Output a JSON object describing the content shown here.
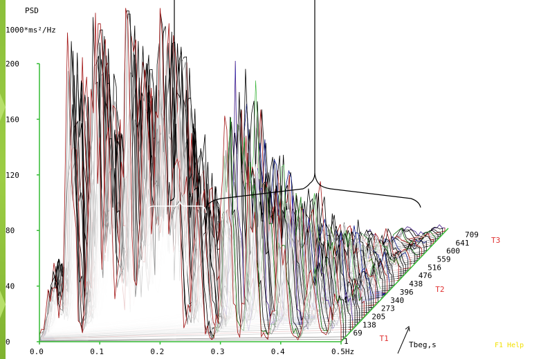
{
  "chart_data": {
    "type": "area",
    "ylabel_line1": "PSD",
    "ylabel_line2": "1000*ms²/Hz",
    "ytick_labels": [
      "0",
      "40",
      "80",
      "120",
      "160",
      "200"
    ],
    "y_ticks": [
      0,
      40,
      80,
      120,
      160,
      200
    ],
    "ylim": [
      0,
      240
    ],
    "xtick_labels": [
      "0.0",
      "0.1",
      "0.2",
      "0.3",
      "0.4",
      "0.5Hz"
    ],
    "x_ticks": [
      0.0,
      0.1,
      0.2,
      0.3,
      0.4,
      0.5
    ],
    "xlim": [
      0.0,
      0.5
    ],
    "depth_axis_label": "Tbeg,s",
    "depth_tick_labels": [
      "1",
      "69",
      "138",
      "205",
      "273",
      "340",
      "396",
      "438",
      "476",
      "516",
      "559",
      "600",
      "641",
      "709"
    ],
    "markers": [
      {
        "label": "T1",
        "at_tbeg": 69
      },
      {
        "label": "T2",
        "at_tbeg": 438
      },
      {
        "label": "T3",
        "at_tbeg": 709
      }
    ],
    "peaks": [
      {
        "freq": 0.02,
        "psd": 50
      },
      {
        "freq": 0.05,
        "psd": 200
      },
      {
        "freq": 0.09,
        "psd": 240
      },
      {
        "freq": 0.115,
        "psd": 150
      },
      {
        "freq": 0.145,
        "psd": 240
      },
      {
        "freq": 0.175,
        "psd": 180
      },
      {
        "freq": 0.2,
        "psd": 240
      },
      {
        "freq": 0.225,
        "psd": 160
      },
      {
        "freq": 0.26,
        "psd": 100
      },
      {
        "freq": 0.31,
        "psd": 180
      },
      {
        "freq": 0.35,
        "psd": 120
      },
      {
        "freq": 0.4,
        "psd": 90
      },
      {
        "freq": 0.45,
        "psd": 60
      },
      {
        "freq": 0.49,
        "psd": 30
      }
    ],
    "grid": false,
    "legend": "none"
  },
  "footer": {
    "help_hint": "F1 Help"
  },
  "colors": {
    "axis": "#33bb33",
    "trace_dark": "#000000",
    "trace_red": "#a01010",
    "trace_white": "#ffffff",
    "basin_blue": "#1a22b0",
    "depth_green": "#22cc22",
    "marker_red": "#e03030",
    "help_yellow": "#f2e000"
  }
}
